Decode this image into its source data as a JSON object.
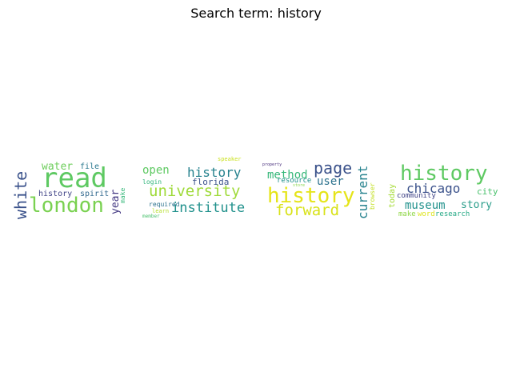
{
  "title": "Search term: history",
  "clouds": [
    {
      "words": [
        {
          "text": "read",
          "color": "#5ec962"
        },
        {
          "text": "london",
          "color": "#7ad151"
        },
        {
          "text": "white",
          "color": "#3b528b"
        },
        {
          "text": "water",
          "color": "#6ccd5a"
        },
        {
          "text": "file",
          "color": "#2a788e"
        },
        {
          "text": "history",
          "color": "#414487"
        },
        {
          "text": "spirit",
          "color": "#31688e"
        },
        {
          "text": "year",
          "color": "#443983"
        },
        {
          "text": "make",
          "color": "#35b779"
        }
      ]
    },
    {
      "words": [
        {
          "text": "open",
          "color": "#5ec962"
        },
        {
          "text": "history",
          "color": "#26828e"
        },
        {
          "text": "university",
          "color": "#9fda3a"
        },
        {
          "text": "florida",
          "color": "#3b528b"
        },
        {
          "text": "institute",
          "color": "#21918c"
        },
        {
          "text": "login",
          "color": "#31b57b"
        },
        {
          "text": "required",
          "color": "#2c728e"
        },
        {
          "text": "learn",
          "color": "#b5de2b"
        },
        {
          "text": "member",
          "color": "#4ac16d"
        },
        {
          "text": "speaker",
          "color": "#cae11f"
        }
      ]
    },
    {
      "words": [
        {
          "text": "property",
          "color": "#472d7b"
        },
        {
          "text": "method",
          "color": "#35b779"
        },
        {
          "text": "page",
          "color": "#3b528b"
        },
        {
          "text": "history",
          "color": "#e5e419"
        },
        {
          "text": "forward",
          "color": "#d8e219"
        },
        {
          "text": "user",
          "color": "#2c728e"
        },
        {
          "text": "resource",
          "color": "#21918c"
        },
        {
          "text": "store",
          "color": "#86d549"
        },
        {
          "text": "current",
          "color": "#26828e"
        },
        {
          "text": "browser",
          "color": "#c2df23"
        }
      ]
    },
    {
      "words": [
        {
          "text": "history",
          "color": "#5ec962"
        },
        {
          "text": "chicago",
          "color": "#3b528b"
        },
        {
          "text": "today",
          "color": "#a5db36"
        },
        {
          "text": "community",
          "color": "#414487"
        },
        {
          "text": "museum",
          "color": "#21918c"
        },
        {
          "text": "city",
          "color": "#4ac16d"
        },
        {
          "text": "story",
          "color": "#2a9d8a"
        },
        {
          "text": "make",
          "color": "#8ed645"
        },
        {
          "text": "word",
          "color": "#dde318"
        },
        {
          "text": "research",
          "color": "#22a884"
        }
      ]
    }
  ]
}
